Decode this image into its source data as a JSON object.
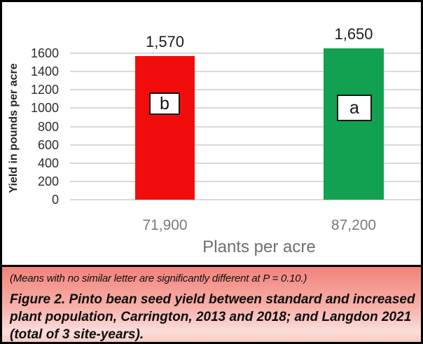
{
  "chart_data": {
    "type": "bar",
    "title": "",
    "xlabel": "Plants per acre",
    "ylabel": "Yield in pounds per acre",
    "categories": [
      "71,900",
      "87,200"
    ],
    "values": [
      1570,
      1650
    ],
    "value_labels": [
      "1,570",
      "1,650"
    ],
    "significance_letters": [
      "b",
      "a"
    ],
    "bar_colors": [
      "#F20D0D",
      "#12A150"
    ],
    "ylim": [
      0,
      1600
    ],
    "ytick_step": 200,
    "yticks": [
      1600,
      1400,
      1200,
      1000,
      800,
      600,
      400,
      200,
      0
    ],
    "grid": true,
    "legend": "none"
  },
  "figure": {
    "caption_note": "(Means with no similar letter are significantly different at P = 0.10.)",
    "caption_lines": [
      "Figure 2. Pinto bean seed yield between standard and increased",
      "plant population, Carrington, 2013 and 2018; and Langdon 2021",
      "(total of 3 site-years)."
    ]
  },
  "colors": {
    "gridline": "#D8D8D8",
    "bar_red": "#F20D0D",
    "bar_green": "#12A150",
    "caption_bg_top": "#F1837B",
    "caption_bg_mid": "#F7B2AB",
    "caption_bg_light": "#FBDDD9",
    "caption_bg_bottom": "#F7CBC4",
    "frame_border": "#000000"
  }
}
